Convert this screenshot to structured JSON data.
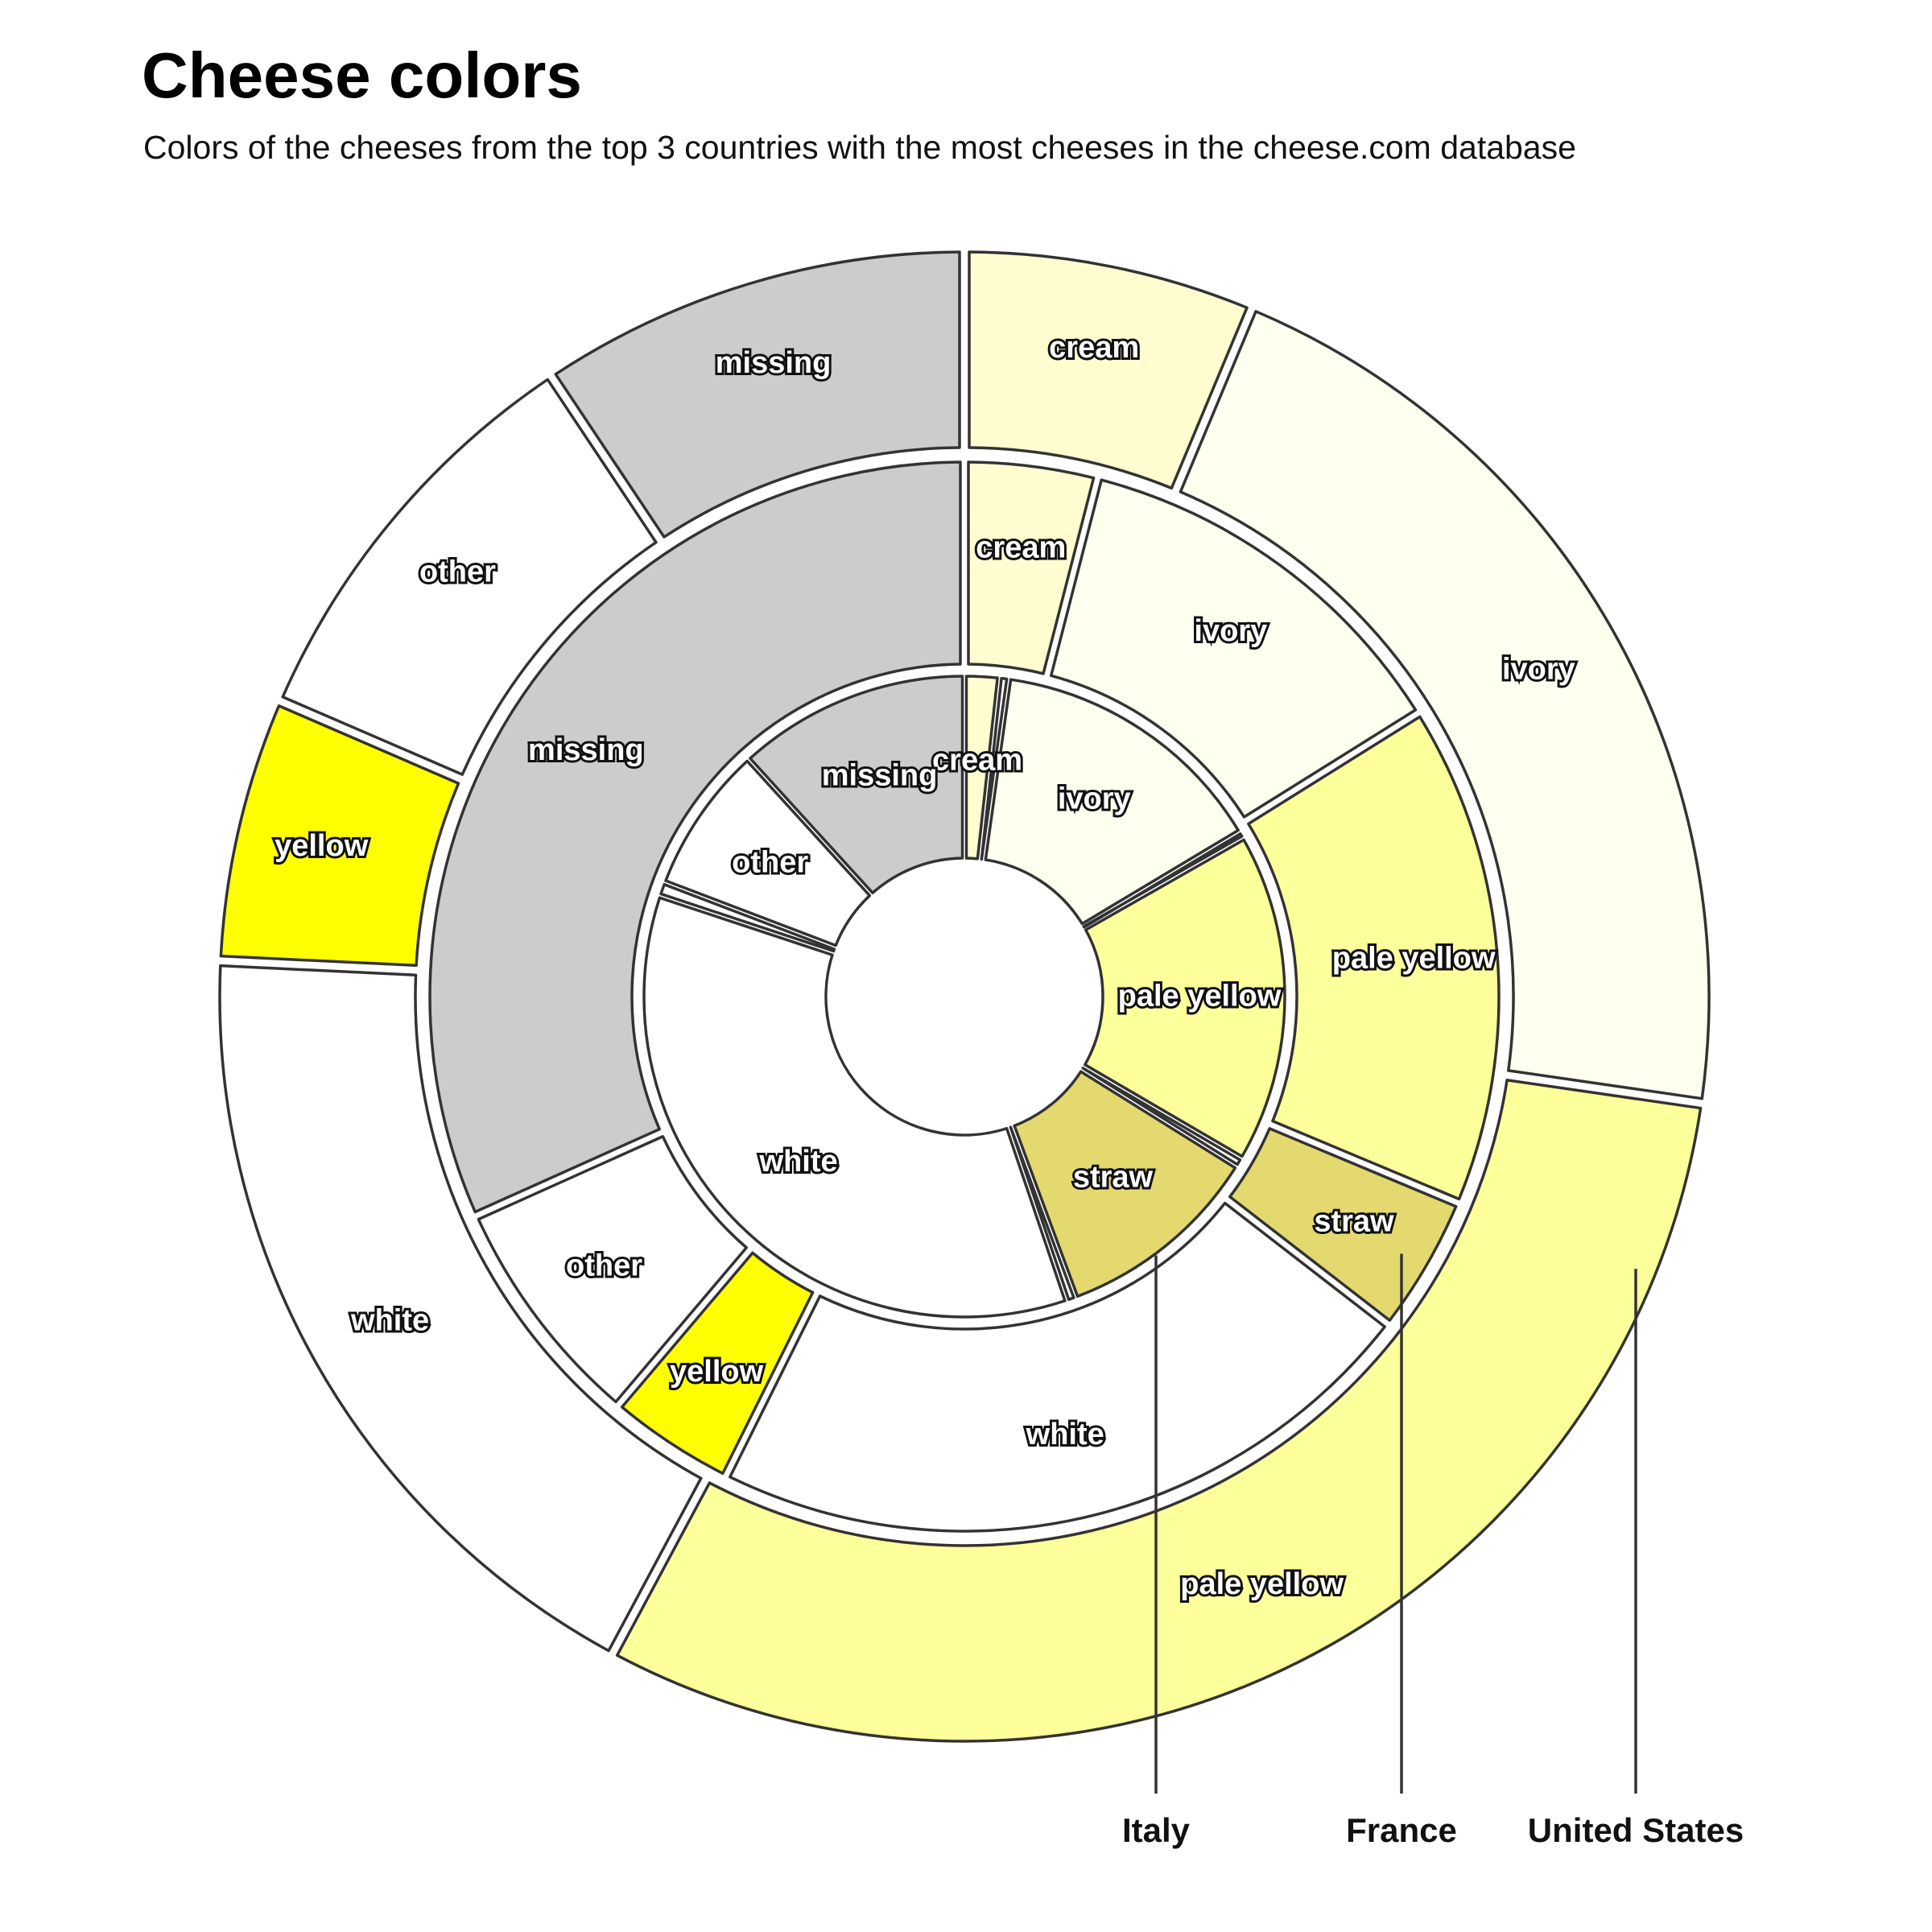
{
  "title": "Cheese colors",
  "subtitle": "Colors of the cheeses from the top 3 countries with the most cheeses in the cheese.com database",
  "colors": {
    "cream": "#fffcd0",
    "ivory": "#fffff0",
    "pale yellow": "#fdff9a",
    "straw": "#e4d96f",
    "white": "#ffffff",
    "yellow": "#ffff00",
    "other": "#ffffff",
    "missing": "#cccccc"
  },
  "chart_data": {
    "type": "pie",
    "ring_order": [
      "Italy",
      "France",
      "United States"
    ],
    "countries": [
      {
        "name": "Italy",
        "segments": [
          {
            "label": "cream",
            "value": 1.5
          },
          {
            "label": "",
            "value": 0.4
          },
          {
            "label": "ivory",
            "value": 12.2
          },
          {
            "label": "",
            "value": 0.3
          },
          {
            "label": "pale yellow",
            "value": 14.3
          },
          {
            "label": "",
            "value": 0.4
          },
          {
            "label": "straw",
            "value": 9.0
          },
          {
            "label": "",
            "value": 0.4
          },
          {
            "label": "white",
            "value": 30.3
          },
          {
            "label": "",
            "value": 0.6
          },
          {
            "label": "other",
            "value": 6.4
          },
          {
            "label": "missing",
            "value": 10.1
          }
        ]
      },
      {
        "name": "France",
        "segments": [
          {
            "label": "cream",
            "value": 4.8
          },
          {
            "label": "ivory",
            "value": 14.5
          },
          {
            "label": "pale yellow",
            "value": 18.2
          },
          {
            "label": "straw",
            "value": 5.0
          },
          {
            "label": "white",
            "value": 26.2
          },
          {
            "label": "yellow",
            "value": 4.6
          },
          {
            "label": "other",
            "value": 8.5
          },
          {
            "label": "missing",
            "value": 38.0
          }
        ]
      },
      {
        "name": "United States",
        "segments": [
          {
            "label": "cream",
            "value": 16.5
          },
          {
            "label": "ivory",
            "value": 55.0
          },
          {
            "label": "pale yellow",
            "value": 80.0
          },
          {
            "label": "white",
            "value": 47.0
          },
          {
            "label": "yellow",
            "value": 15.0
          },
          {
            "label": "other",
            "value": 24.0
          },
          {
            "label": "missing",
            "value": 24.5
          }
        ]
      }
    ]
  }
}
